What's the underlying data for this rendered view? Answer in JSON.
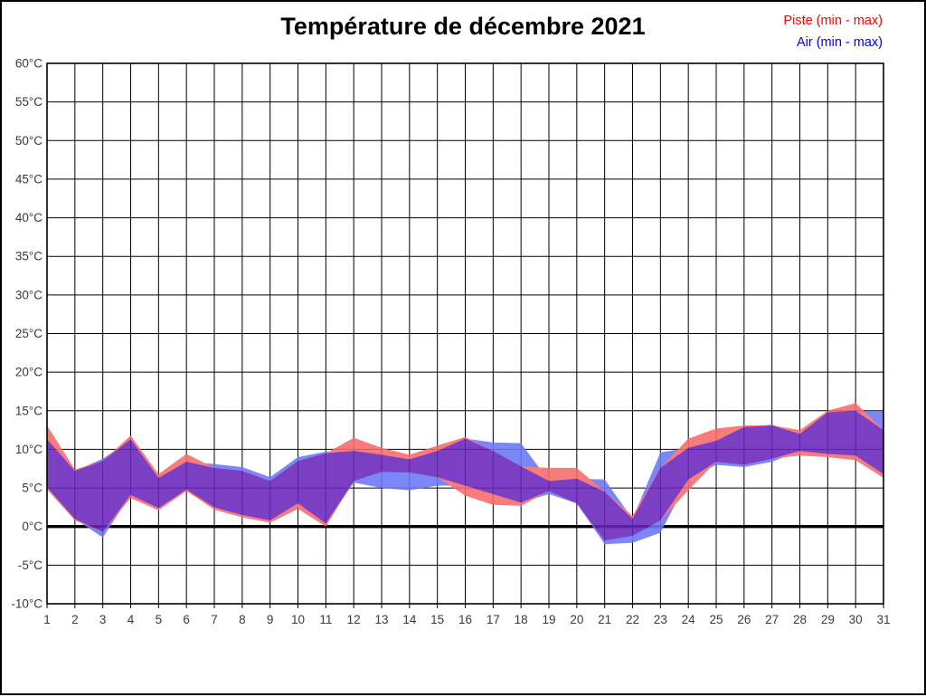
{
  "title": "Température de décembre 2021",
  "legend": {
    "piste_label": "Piste (min - max)",
    "air_label": "Air (min - max)",
    "piste_color": "#ff0000",
    "air_color": "#0000ff"
  },
  "colors": {
    "piste_band": "#f97c7c",
    "air_band": "#7d87f8",
    "overlap_band": "#7b3fc4",
    "grid": "#000000",
    "zero_line": "#000000",
    "axis_text": "#3a3a3a",
    "plot_border": "#000000",
    "background": "#ffffff"
  },
  "chart_data": {
    "type": "area",
    "title": "Température de décembre 2021",
    "xlabel": "",
    "ylabel": "",
    "x": [
      1,
      2,
      3,
      4,
      5,
      6,
      7,
      8,
      9,
      10,
      11,
      12,
      13,
      14,
      15,
      16,
      17,
      18,
      19,
      20,
      21,
      22,
      23,
      24,
      25,
      26,
      27,
      28,
      29,
      30,
      31
    ],
    "x_tick_labels": [
      "1",
      "2",
      "3",
      "4",
      "5",
      "6",
      "7",
      "8",
      "9",
      "10",
      "11",
      "12",
      "13",
      "14",
      "15",
      "16",
      "17",
      "18",
      "19",
      "20",
      "21",
      "22",
      "23",
      "24",
      "25",
      "26",
      "27",
      "28",
      "29",
      "30",
      "31"
    ],
    "ylim": [
      -10,
      60
    ],
    "y_tick_step": 5,
    "y_tick_labels": [
      "60°C",
      "55°C",
      "50°C",
      "45°C",
      "40°C",
      "35°C",
      "30°C",
      "25°C",
      "20°C",
      "15°C",
      "10°C",
      "5°C",
      "0°C",
      "-5°C",
      "-10°C"
    ],
    "grid": true,
    "zero_line": true,
    "legend_position": "top-right",
    "series": [
      {
        "name": "Piste (min - max)",
        "min": [
          4.8,
          0.8,
          -0.7,
          3.7,
          2.1,
          4.6,
          2.2,
          1.2,
          0.5,
          2.3,
          0.0,
          5.9,
          7.1,
          7.0,
          6.4,
          4.0,
          2.8,
          2.7,
          4.6,
          3.0,
          -1.8,
          -1.2,
          0.8,
          4.7,
          8.4,
          8.0,
          8.8,
          9.2,
          9.0,
          8.6,
          6.3
        ],
        "max": [
          13.1,
          7.4,
          8.5,
          11.8,
          6.8,
          9.4,
          7.6,
          7.2,
          5.9,
          8.5,
          9.5,
          11.5,
          10.2,
          9.3,
          10.5,
          11.6,
          9.8,
          7.8,
          7.6,
          7.6,
          4.5,
          1.4,
          7.6,
          11.4,
          12.7,
          13.1,
          13.1,
          12.5,
          15.0,
          16.0,
          12.5
        ]
      },
      {
        "name": "Air (min - max)",
        "min": [
          5.1,
          1.0,
          -1.4,
          4.1,
          2.4,
          4.8,
          2.5,
          1.5,
          0.8,
          3.0,
          0.4,
          5.7,
          5.0,
          4.7,
          5.3,
          5.3,
          4.2,
          3.1,
          4.2,
          3.0,
          -2.3,
          -2.1,
          -0.8,
          6.1,
          8.0,
          7.7,
          8.4,
          9.8,
          9.4,
          9.2,
          6.8
        ],
        "max": [
          11.3,
          7.2,
          8.8,
          11.3,
          6.3,
          8.4,
          8.1,
          7.7,
          6.4,
          9.0,
          9.7,
          9.8,
          9.3,
          8.7,
          9.8,
          11.4,
          10.9,
          10.8,
          5.9,
          6.2,
          6.1,
          1.0,
          9.6,
          10.2,
          11.1,
          12.9,
          13.2,
          12.0,
          14.8,
          15.0,
          14.9
        ]
      }
    ]
  }
}
